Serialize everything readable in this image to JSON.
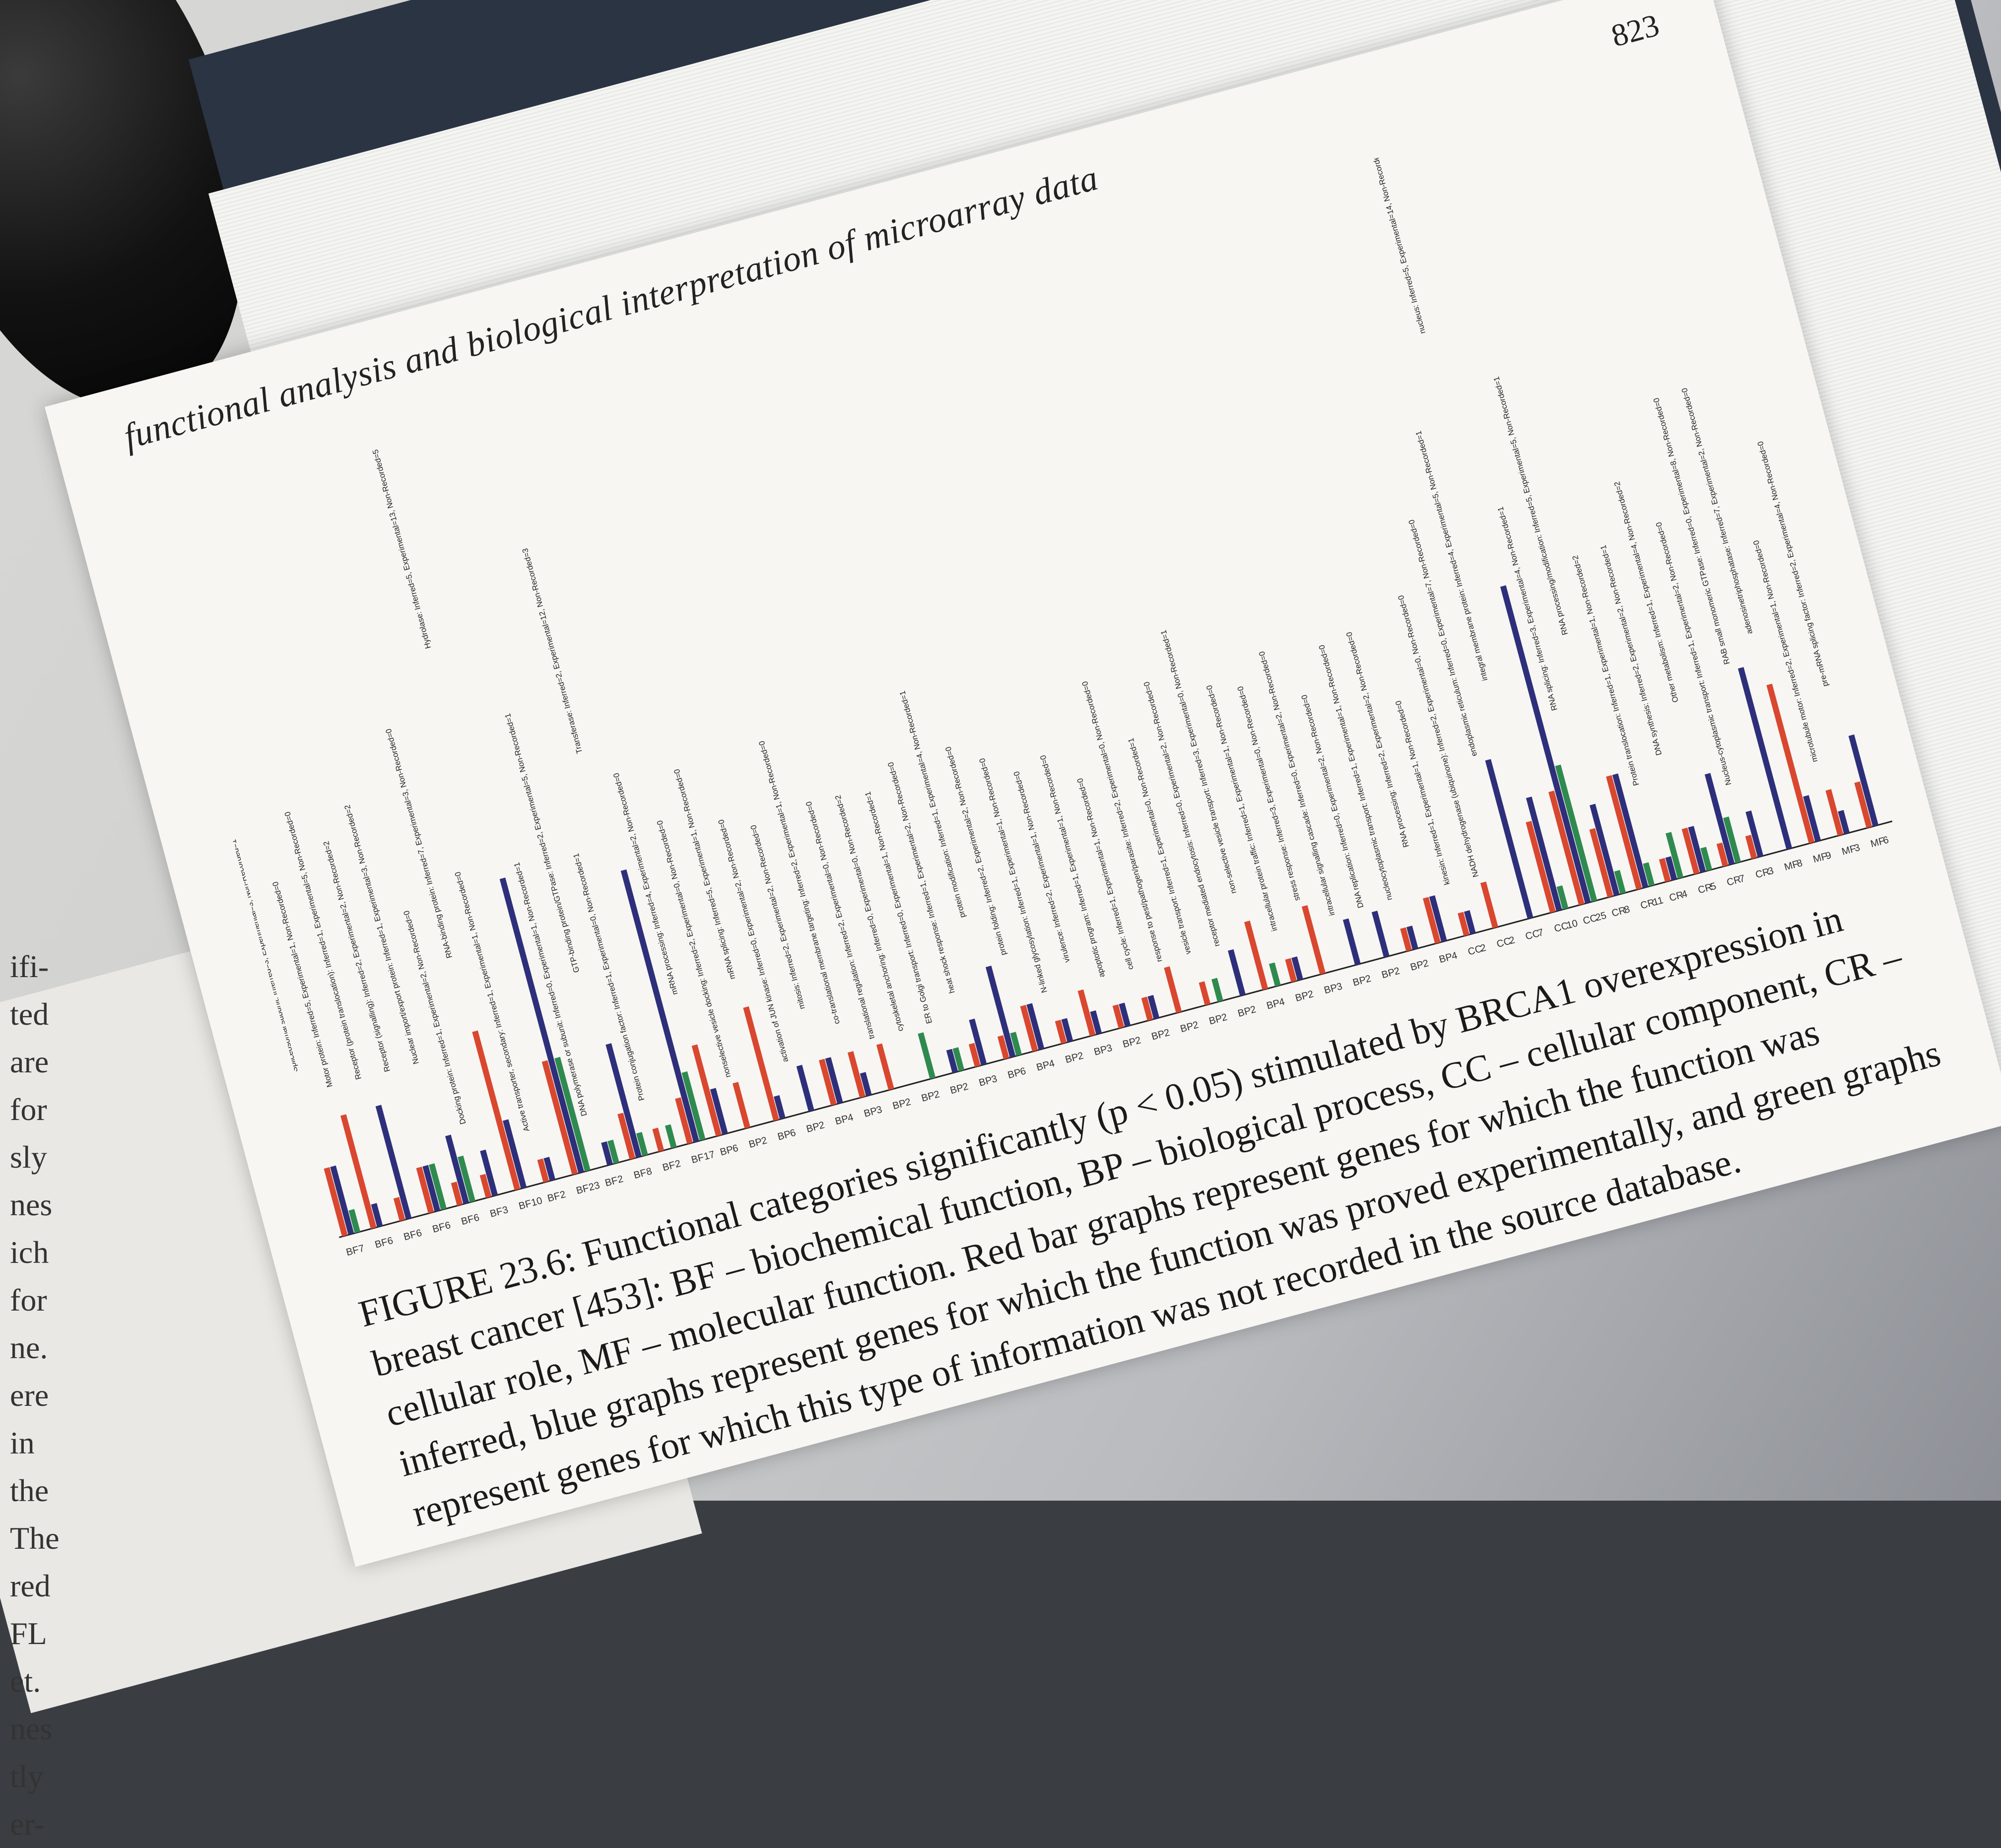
{
  "book": {
    "running_head": "functional analysis and biological interpretation of microarray data",
    "page_number": "823"
  },
  "figure": {
    "caption_label": "FIGURE 23.6:",
    "caption_text": "Functional categories significantly (p < 0.05) stimulated by BRCA1 overexpression in breast cancer [453]: BF – biochemical function, BP – biological process, CC – cellular component, CR – cellular role, MF – molecular function. Red bar graphs represent genes for which the function was inferred, blue graphs represent genes for which the function was proved experimentally, and green graphs represent genes for which this type of information was not recorded in the source database."
  },
  "left_margin_fragments": [
    "ifi-",
    "ted",
    "are",
    "for",
    "sly",
    "nes",
    "ich",
    "for",
    "ne.",
    "ere",
    "in",
    "the",
    "The",
    "red",
    "FL",
    "et.",
    "nes",
    "tly",
    "er-"
  ],
  "colors": {
    "inferred": "#d9472f",
    "experimental": "#2e2f7a",
    "not_recorded": "#2f8a4f"
  },
  "chart_data": {
    "type": "bar",
    "orientation": "horizontal",
    "series": [
      {
        "name": "Inferred"
      },
      {
        "name": "Experimental"
      },
      {
        "name": "Non-Recorded"
      }
    ],
    "categories": [
      {
        "label": "Spliceosomal subunit: Inferred=3, Experimental=3, Non-Recorded=1",
        "group": "BF",
        "total": 7,
        "inferred": 3,
        "experimental": 3,
        "non_recorded": 1
      },
      {
        "label": "Motor protein: Inferred=5, Experimental=1, Non-Recorded=0",
        "group": "BF",
        "total": 6,
        "inferred": 5,
        "experimental": 1,
        "non_recorded": 0
      },
      {
        "label": "Receptor (protein translocation): Inferred=1, Experimental=5, Non-Recorded=0",
        "group": "BF",
        "total": 6,
        "inferred": 1,
        "experimental": 5,
        "non_recorded": 0
      },
      {
        "label": "Receptor (signalling): Inferred=2, Experimental=2, Non-Recorded=2",
        "group": "BF",
        "total": 6,
        "inferred": 2,
        "experimental": 2,
        "non_recorded": 2
      },
      {
        "label": "Nuclear import/export protein: Inferred=1, Experimental=3, Non-Recorded=2",
        "group": "BF",
        "total": 6,
        "inferred": 1,
        "experimental": 3,
        "non_recorded": 2
      },
      {
        "label": "Docking protein: Inferred=1, Experimental=2, Non-Recorded=0",
        "group": "BF",
        "total": 3,
        "inferred": 1,
        "experimental": 2,
        "non_recorded": 0
      },
      {
        "label": "RNA-binding protein: Inferred=7, Experimental=3, Non-Recorded=0",
        "group": "BF",
        "total": 10,
        "inferred": 7,
        "experimental": 3,
        "non_recorded": 0
      },
      {
        "label": "Active transporter, secondary: Inferred=1, Experimental=1, Non-Recorded=0",
        "group": "BF",
        "total": 2,
        "inferred": 1,
        "experimental": 1,
        "non_recorded": 0
      },
      {
        "label": "Hydrolase: Inferred=5, Experimental=13, Non-Recorded=5",
        "group": "BF",
        "total": 23,
        "inferred": 5,
        "experimental": 13,
        "non_recorded": 5
      },
      {
        "label": "DNA polymerase or subunit: Inferred=0, Experimental=1, Non-Recorded=1",
        "group": "BF",
        "total": 2,
        "inferred": 0,
        "experimental": 1,
        "non_recorded": 1
      },
      {
        "label": "GTP-binding protein/GTPase: Inferred=2, Experimental=5, Non-Recorded=1",
        "group": "BF",
        "total": 8,
        "inferred": 2,
        "experimental": 5,
        "non_recorded": 1
      },
      {
        "label": "Protein conjugation factor: Inferred=1, Experimental=0, Non-Recorded=1",
        "group": "BF",
        "total": 2,
        "inferred": 1,
        "experimental": 0,
        "non_recorded": 1
      },
      {
        "label": "Transferase: Inferred=2, Experimental=12, Non-Recorded=3",
        "group": "BF",
        "total": 17,
        "inferred": 2,
        "experimental": 12,
        "non_recorded": 3
      },
      {
        "label": "mRNA processing: Inferred=4, Experimental=2, Non-Recorded=0",
        "group": "BP",
        "total": 6,
        "inferred": 4,
        "experimental": 2,
        "non_recorded": 0
      },
      {
        "label": "nonselective vesicle docking: Inferred=2, Experimental=0, Non-Recorded=0",
        "group": "BP",
        "total": 2,
        "inferred": 2,
        "experimental": 0,
        "non_recorded": 0
      },
      {
        "label": "mRNA splicing: Inferred=5, Experimental=1, Non-Recorded=0",
        "group": "BP",
        "total": 6,
        "inferred": 5,
        "experimental": 1,
        "non_recorded": 0
      },
      {
        "label": "activation of JUN kinase: Inferred=0, Experimental=2, Non-Recorded=0",
        "group": "BP",
        "total": 2,
        "inferred": 0,
        "experimental": 2,
        "non_recorded": 0
      },
      {
        "label": "mitosis: Inferred=2, Experimental=2, Non-Recorded=0",
        "group": "BP",
        "total": 4,
        "inferred": 2,
        "experimental": 2,
        "non_recorded": 0
      },
      {
        "label": "co-translational membrane targeting: Inferred=2, Experimental=1, Non-Recorded=0",
        "group": "BP",
        "total": 3,
        "inferred": 2,
        "experimental": 1,
        "non_recorded": 0
      },
      {
        "label": "translational regulation: Inferred=2, Experimental=0, Non-Recorded=0",
        "group": "BP",
        "total": 2,
        "inferred": 2,
        "experimental": 0,
        "non_recorded": 0
      },
      {
        "label": "cytoskeletal anchoring: Inferred=0, Experimental=0, Non-Recorded=2",
        "group": "BP",
        "total": 2,
        "inferred": 0,
        "experimental": 0,
        "non_recorded": 2
      },
      {
        "label": "ER to Golgi transport: Inferred=0, Experimental=1, Non-Recorded=1",
        "group": "BP",
        "total": 2,
        "inferred": 0,
        "experimental": 1,
        "non_recorded": 1
      },
      {
        "label": "heat shock response: Inferred=1, Experimental=2, Non-Recorded=0",
        "group": "BP",
        "total": 3,
        "inferred": 1,
        "experimental": 2,
        "non_recorded": 0
      },
      {
        "label": "protein modification: Inferred=1, Experimental=4, Non-Recorded=1",
        "group": "BP",
        "total": 6,
        "inferred": 1,
        "experimental": 4,
        "non_recorded": 1
      },
      {
        "label": "protein folding: Inferred=2, Experimental=2, Non-Recorded=0",
        "group": "BP",
        "total": 4,
        "inferred": 2,
        "experimental": 2,
        "non_recorded": 0
      },
      {
        "label": "N-linked glycosylation: Inferred=1, Experimental=1, Non-Recorded=0",
        "group": "BP",
        "total": 2,
        "inferred": 1,
        "experimental": 1,
        "non_recorded": 0
      },
      {
        "label": "virulence: Inferred=2, Experimental=1, Non-Recorded=0",
        "group": "BP",
        "total": 3,
        "inferred": 2,
        "experimental": 1,
        "non_recorded": 0
      },
      {
        "label": "apoptotic program: Inferred=1, Experimental=1, Non-Recorded=0",
        "group": "BP",
        "total": 2,
        "inferred": 1,
        "experimental": 1,
        "non_recorded": 0
      },
      {
        "label": "cell cycle: Inferred=1, Experimental=1, Non-Recorded=0",
        "group": "BP",
        "total": 2,
        "inferred": 1,
        "experimental": 1,
        "non_recorded": 0
      },
      {
        "label": "response to pest/pathogen/parasite: Inferred=2, Experimental=0, Non-Recorded=0",
        "group": "BP",
        "total": 2,
        "inferred": 2,
        "experimental": 0,
        "non_recorded": 0
      },
      {
        "label": "vesicle transport: Inferred=1, Experimental=0, Non-Recorded=1",
        "group": "BP",
        "total": 2,
        "inferred": 1,
        "experimental": 0,
        "non_recorded": 1
      },
      {
        "label": "receptor mediated endocytosis: Inferred=0, Experimental=2, Non-Recorded=0",
        "group": "BP",
        "total": 2,
        "inferred": 0,
        "experimental": 2,
        "non_recorded": 0
      },
      {
        "label": "non-selective vesicle transport: Inferred=3, Experimental=0, Non-Recorded=1",
        "group": "BP",
        "total": 4,
        "inferred": 3,
        "experimental": 0,
        "non_recorded": 1
      },
      {
        "label": "intracellular protein traffic: Inferred=1, Experimental=1, Non-Recorded=0",
        "group": "BP",
        "total": 2,
        "inferred": 1,
        "experimental": 1,
        "non_recorded": 0
      },
      {
        "label": "stress response: Inferred=3, Experimental=0, Non-Recorded=0",
        "group": "BP",
        "total": 3,
        "inferred": 3,
        "experimental": 0,
        "non_recorded": 0
      },
      {
        "label": "intracellular signalling cascade: Inferred=0, Experimental=2, Non-Recorded=0",
        "group": "BP",
        "total": 2,
        "inferred": 0,
        "experimental": 2,
        "non_recorded": 0
      },
      {
        "label": "DNA replication: Inferred=0, Experimental=2, Non-Recorded=0",
        "group": "BP",
        "total": 2,
        "inferred": 0,
        "experimental": 2,
        "non_recorded": 0
      },
      {
        "label": "nucleocytoplasmic transport: Inferred=1, Experimental=1, Non-Recorded=0",
        "group": "BP",
        "total": 2,
        "inferred": 1,
        "experimental": 1,
        "non_recorded": 0
      },
      {
        "label": "RNA processing: Inferred=2, Experimental=2, Non-Recorded=0",
        "group": "BP",
        "total": 4,
        "inferred": 2,
        "experimental": 2,
        "non_recorded": 0
      },
      {
        "label": "kinesin: Inferred=1, Experimental=1, Non-Recorded=0",
        "group": "CC",
        "total": 2,
        "inferred": 1,
        "experimental": 1,
        "non_recorded": 0
      },
      {
        "label": "NADH dehydrogenase (ubiquinone): Inferred=2, Experimental=0, Non-Recorded=0",
        "group": "CC",
        "total": 2,
        "inferred": 2,
        "experimental": 0,
        "non_recorded": 0
      },
      {
        "label": "endoplasmic reticulum: Inferred=0, Experimental=7, Non-Recorded=0",
        "group": "CC",
        "total": 7,
        "inferred": 0,
        "experimental": 7,
        "non_recorded": 0
      },
      {
        "label": "integral membrane protein: Inferred=4, Experimental=5, Non-Recorded=1",
        "group": "CC",
        "total": 10,
        "inferred": 4,
        "experimental": 5,
        "non_recorded": 1
      },
      {
        "label": "nucleus: Inferred=5, Experimental=14, Non-Recorded=6",
        "group": "CC",
        "total": 25,
        "inferred": 5,
        "experimental": 14,
        "non_recorded": 6
      },
      {
        "label": "RNA splicing: Inferred=3, Experimental=4, Non-Recorded=1",
        "group": "CR",
        "total": 8,
        "inferred": 3,
        "experimental": 4,
        "non_recorded": 1
      },
      {
        "label": "RNA processing/modification: Inferred=5, Experimental=5, Non-Recorded=1",
        "group": "CR",
        "total": 11,
        "inferred": 5,
        "experimental": 5,
        "non_recorded": 1
      },
      {
        "label": "Protein translocation: Inferred=1, Experimental=1, Non-Recorded=2",
        "group": "CR",
        "total": 4,
        "inferred": 1,
        "experimental": 1,
        "non_recorded": 2
      },
      {
        "label": "DNA synthesis: Inferred=2, Experimental=2, Non-Recorded=1",
        "group": "CR",
        "total": 5,
        "inferred": 2,
        "experimental": 2,
        "non_recorded": 1
      },
      {
        "label": "Other metabolism: Inferred=1, Experimental=4, Non-Recorded=2",
        "group": "CR",
        "total": 7,
        "inferred": 1,
        "experimental": 4,
        "non_recorded": 2
      },
      {
        "label": "Nucleus-cytoplasmic transport: Inferred=1, Experimental=2, Non-Recorded=0",
        "group": "CR",
        "total": 3,
        "inferred": 1,
        "experimental": 2,
        "non_recorded": 0
      },
      {
        "label": "RAB small monomeric GTPase: Inferred=0, Experimental=8, Non-Recorded=0",
        "group": "MF",
        "total": 8,
        "inferred": 0,
        "experimental": 8,
        "non_recorded": 0
      },
      {
        "label": "adenosinetriphosphatase: Inferred=7, Experimental=2, Non-Recorded=0",
        "group": "MF",
        "total": 9,
        "inferred": 7,
        "experimental": 2,
        "non_recorded": 0
      },
      {
        "label": "microtubule motor: Inferred=2, Experimental=1, Non-Recorded=0",
        "group": "MF",
        "total": 3,
        "inferred": 2,
        "experimental": 1,
        "non_recorded": 0
      },
      {
        "label": "pre-mRNA splicing factor: Inferred=2, Experimental=4, Non-Recorded=0",
        "group": "MF",
        "total": 6,
        "inferred": 2,
        "experimental": 4,
        "non_recorded": 0
      }
    ]
  }
}
